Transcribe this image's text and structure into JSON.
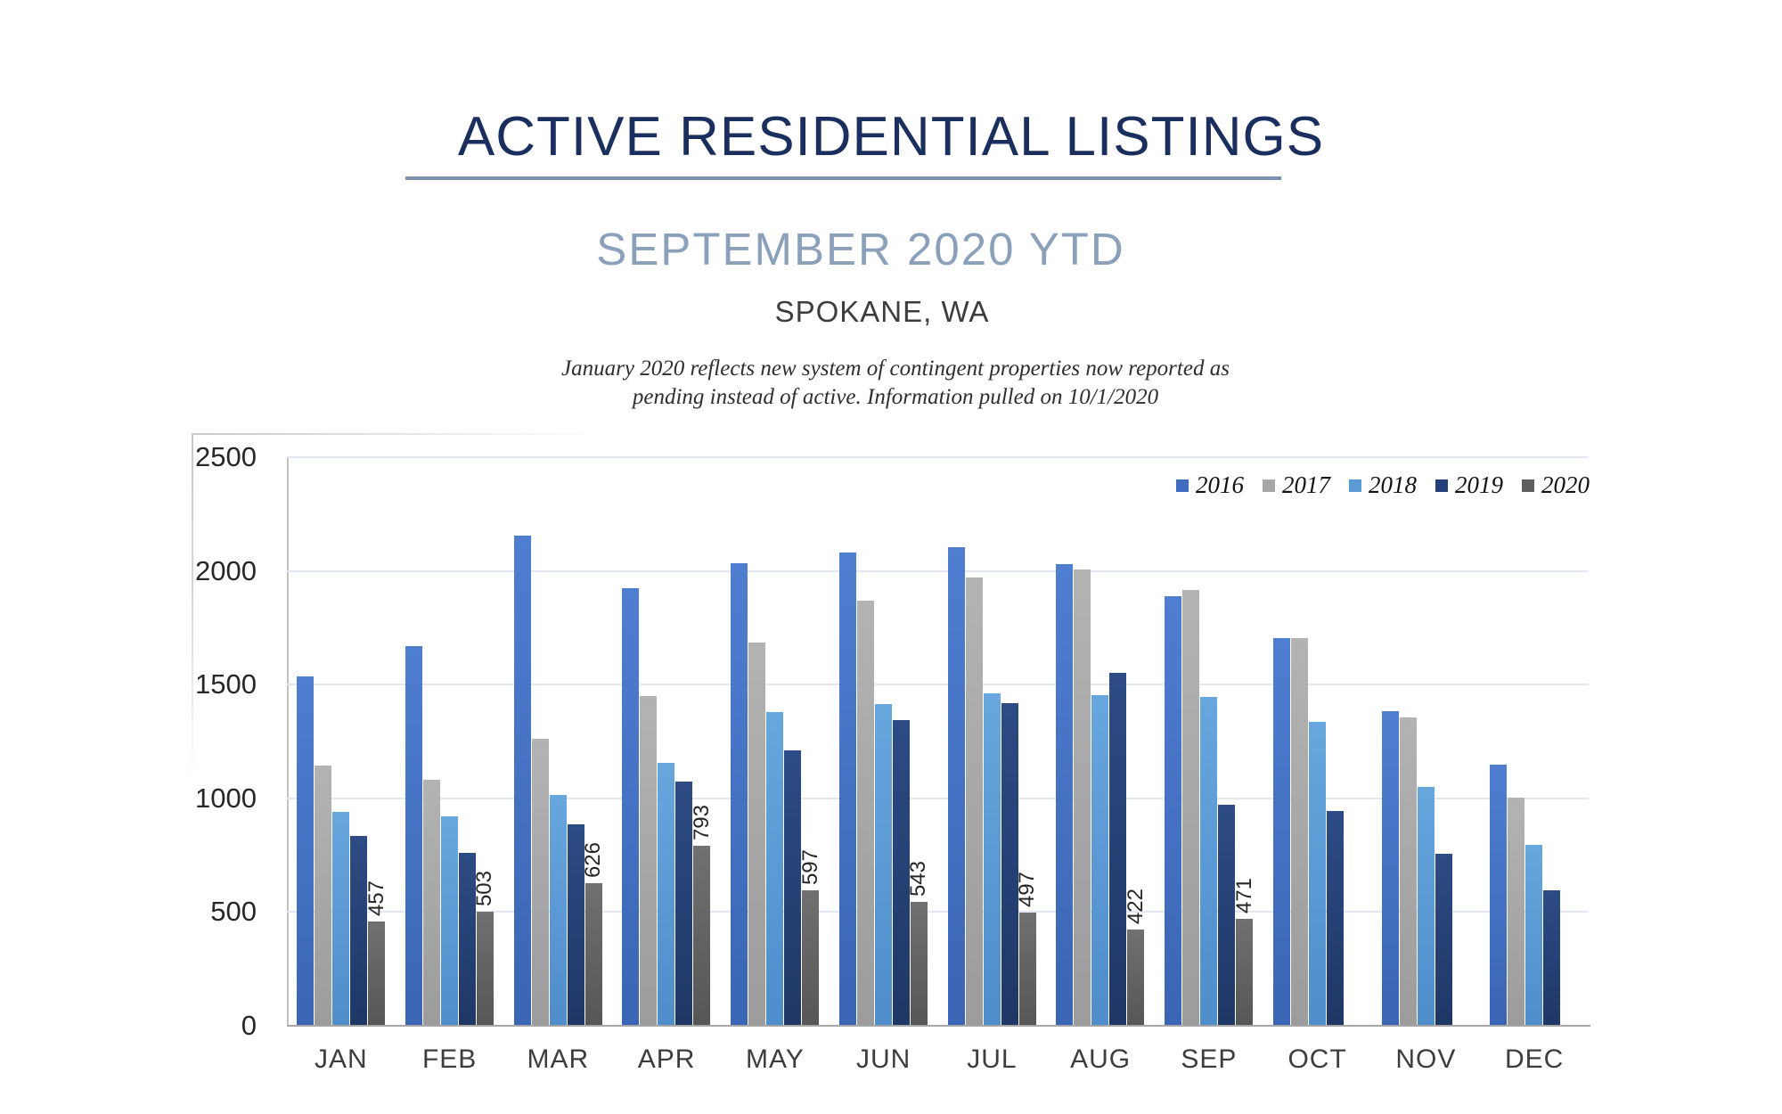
{
  "header": {
    "title": "ACTIVE RESIDENTIAL LISTINGS",
    "subtitle": "SEPTEMBER 2020 YTD",
    "location": "SPOKANE, WA",
    "note_line1": "January 2020 reflects new system of contingent properties now reported as",
    "note_line2": "pending instead of active.  Information pulled on 10/1/2020"
  },
  "chart_data": {
    "type": "bar",
    "title": "Active Residential Listings, September 2020 YTD, Spokane WA",
    "categories": [
      "JAN",
      "FEB",
      "MAR",
      "APR",
      "MAY",
      "JUN",
      "JUL",
      "AUG",
      "SEP",
      "OCT",
      "NOV",
      "DEC"
    ],
    "series": [
      {
        "name": "2016",
        "color": "#3f6ec0",
        "gradient_top": "#4f7ed1",
        "gradient_bottom": "#3a65b4",
        "values": [
          1535,
          1670,
          2155,
          1925,
          2035,
          2080,
          2105,
          2030,
          1890,
          1705,
          1385,
          1150
        ]
      },
      {
        "name": "2017",
        "color": "#a6a6a6",
        "gradient_top": "#b3b3b3",
        "gradient_bottom": "#9c9c9c",
        "values": [
          1145,
          1080,
          1260,
          1450,
          1685,
          1870,
          1970,
          2005,
          1915,
          1705,
          1355,
          1005
        ]
      },
      {
        "name": "2018",
        "color": "#5b9bd5",
        "gradient_top": "#68a6de",
        "gradient_bottom": "#4f8dcb",
        "values": [
          940,
          920,
          1015,
          1155,
          1380,
          1415,
          1460,
          1455,
          1445,
          1335,
          1050,
          795
        ]
      },
      {
        "name": "2019",
        "color": "#24407a",
        "gradient_top": "#2d4b84",
        "gradient_bottom": "#1e3765",
        "values": [
          835,
          760,
          885,
          1075,
          1210,
          1345,
          1420,
          1550,
          970,
          945,
          755,
          595
        ]
      },
      {
        "name": "2020",
        "color": "#5f5f5f",
        "gradient_top": "#707070",
        "gradient_bottom": "#565656",
        "labeled": true,
        "values": [
          457,
          503,
          626,
          793,
          597,
          543,
          497,
          422,
          471,
          null,
          null,
          null
        ]
      }
    ],
    "data_labels": [
      "457",
      "503",
      "626",
      "793",
      "597",
      "543",
      "497",
      "422",
      "471"
    ],
    "xlabel": "",
    "ylabel": "",
    "ylim": [
      0,
      2500
    ],
    "yticks": [
      0,
      500,
      1000,
      1500,
      2000,
      2500
    ],
    "grid": true,
    "legend_position": "top-right"
  }
}
